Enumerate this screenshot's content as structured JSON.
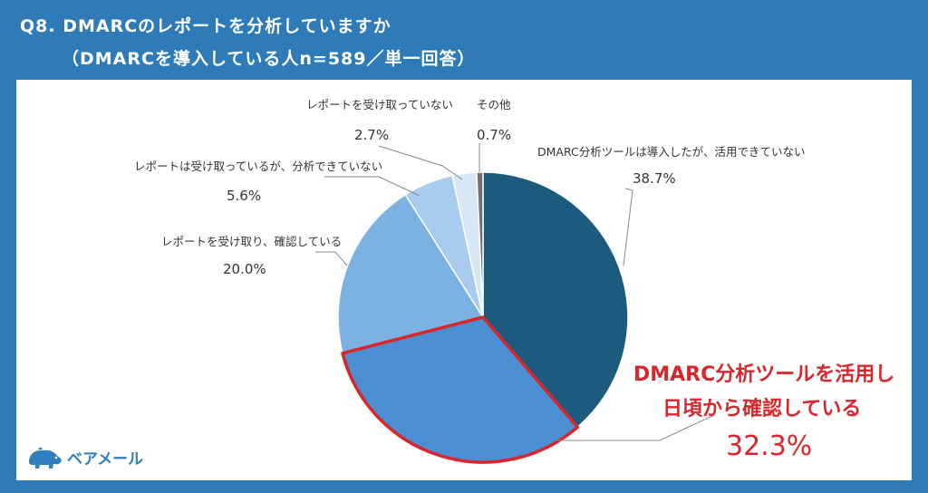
{
  "title": {
    "line1": "Q8. DMARCのレポートを分析していますか",
    "line2": "（DMARCを導入している人n=589／単一回答）"
  },
  "logo": {
    "text": "ベアメール"
  },
  "chart_data": {
    "type": "pie",
    "start_angle_deg": 0,
    "direction": "clockwise",
    "slices": [
      {
        "label": "DMARC分析ツールは導入したが、活用できていない",
        "value": 38.7,
        "value_label": "38.7%",
        "color": "#1c5a7e"
      },
      {
        "label": "DMARC分析ツールを活用し 日頃から確認している",
        "value": 32.3,
        "value_label": "32.3%",
        "color": "#4a8fd2",
        "highlight": true
      },
      {
        "label": "レポートを受け取り、確認している",
        "value": 20.0,
        "value_label": "20.0%",
        "color": "#7cb2e2"
      },
      {
        "label": "レポートは受け取っているが、分析できていない",
        "value": 5.6,
        "value_label": "5.6%",
        "color": "#a9ccee"
      },
      {
        "label": "レポートを受け取っていない",
        "value": 2.7,
        "value_label": "2.7%",
        "color": "#d7e7f6"
      },
      {
        "label": "その他",
        "value": 0.7,
        "value_label": "0.7%",
        "color": "#707070"
      }
    ],
    "highlight_label_lines": [
      "DMARC分析ツールを活用し",
      "日頃から確認している"
    ],
    "highlight_color": "#d9262c"
  }
}
